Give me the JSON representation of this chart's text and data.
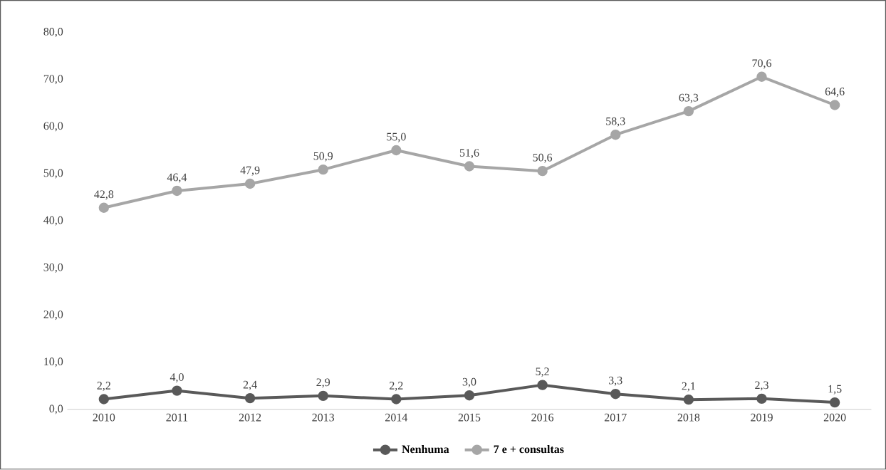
{
  "chart_data": {
    "type": "line",
    "categories": [
      "2010",
      "2011",
      "2012",
      "2013",
      "2014",
      "2015",
      "2016",
      "2017",
      "2018",
      "2019",
      "2020"
    ],
    "series": [
      {
        "name": "Nenhuma",
        "color": "#595959",
        "values": [
          2.2,
          4.0,
          2.4,
          2.9,
          2.2,
          3.0,
          5.2,
          3.3,
          2.1,
          2.3,
          1.5
        ],
        "value_labels": [
          "2,2",
          "4,0",
          "2,4",
          "2,9",
          "2,2",
          "3,0",
          "5,2",
          "3,3",
          "2,1",
          "2,3",
          "1,5"
        ]
      },
      {
        "name": "7 e + consultas",
        "color": "#a6a6a6",
        "values": [
          42.8,
          46.4,
          47.9,
          50.9,
          55.0,
          51.6,
          50.6,
          58.3,
          63.3,
          70.6,
          64.6
        ],
        "value_labels": [
          "42,8",
          "46,4",
          "47,9",
          "50,9",
          "55,0",
          "51,6",
          "50,6",
          "58,3",
          "63,3",
          "70,6",
          "64,6"
        ]
      }
    ],
    "ylim": [
      0,
      80
    ],
    "yticks": [
      {
        "value": 0,
        "label": "0,0"
      },
      {
        "value": 10,
        "label": "10,0"
      },
      {
        "value": 20,
        "label": "20,0"
      },
      {
        "value": 30,
        "label": "30,0"
      },
      {
        "value": 40,
        "label": "40,0"
      },
      {
        "value": 50,
        "label": "50,0"
      },
      {
        "value": 60,
        "label": "60,0"
      },
      {
        "value": 70,
        "label": "70,0"
      },
      {
        "value": 80,
        "label": "80,0"
      }
    ],
    "legend": "bottom",
    "marker": "circle",
    "line_style": "solid"
  }
}
